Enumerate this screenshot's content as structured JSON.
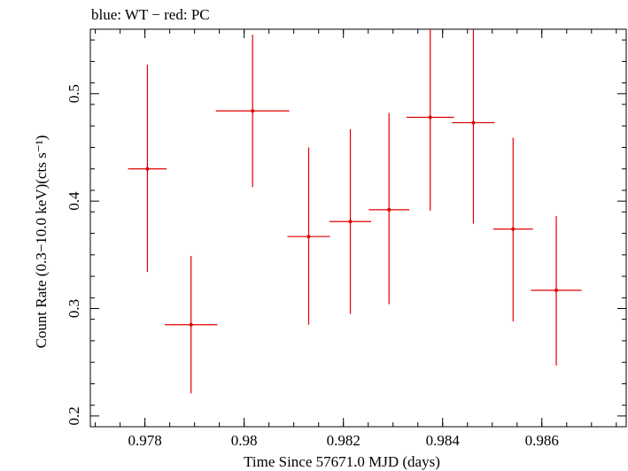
{
  "chart_data": {
    "type": "scatter",
    "title": "blue: WT − red: PC",
    "xlabel": "Time Since 57671.0 MJD (days)",
    "ylabel": "Count Rate (0.3−10.0 keV)(cts s⁻¹)",
    "xlim": [
      0.9769,
      0.9877
    ],
    "ylim": [
      0.19,
      0.56
    ],
    "x_ticks": [
      0.978,
      0.98,
      0.982,
      0.984,
      0.986
    ],
    "x_tick_labels": [
      "0.978",
      "0.98",
      "0.982",
      "0.984",
      "0.986"
    ],
    "y_ticks": [
      0.2,
      0.3,
      0.4,
      0.5
    ],
    "y_tick_labels": [
      "0.2",
      "0.3",
      "0.4",
      "0.5"
    ],
    "grid": false,
    "legend": "none",
    "series": [
      {
        "name": "PC",
        "color": "#e00000",
        "points": [
          {
            "x": 0.97805,
            "y": 0.43,
            "xerr": 0.00039,
            "ylo": 0.334,
            "yhi": 0.527
          },
          {
            "x": 0.97893,
            "y": 0.285,
            "xerr": 0.00053,
            "ylo": 0.221,
            "yhi": 0.349
          },
          {
            "x": 0.98017,
            "y": 0.484,
            "xerr": 0.00074,
            "ylo": 0.413,
            "yhi": 0.555
          },
          {
            "x": 0.9813,
            "y": 0.367,
            "xerr": 0.00043,
            "ylo": 0.285,
            "yhi": 0.45
          },
          {
            "x": 0.98214,
            "y": 0.381,
            "xerr": 0.00042,
            "ylo": 0.295,
            "yhi": 0.467
          },
          {
            "x": 0.98292,
            "y": 0.392,
            "xerr": 0.00041,
            "ylo": 0.304,
            "yhi": 0.482
          },
          {
            "x": 0.98375,
            "y": 0.478,
            "xerr": 0.00048,
            "ylo": 0.391,
            "yhi": 0.564
          },
          {
            "x": 0.98462,
            "y": 0.473,
            "xerr": 0.00043,
            "ylo": 0.379,
            "yhi": 0.566
          },
          {
            "x": 0.98542,
            "y": 0.374,
            "xerr": 0.0004,
            "ylo": 0.288,
            "yhi": 0.459
          },
          {
            "x": 0.98629,
            "y": 0.317,
            "xerr": 0.00051,
            "ylo": 0.247,
            "yhi": 0.386
          }
        ]
      }
    ]
  }
}
